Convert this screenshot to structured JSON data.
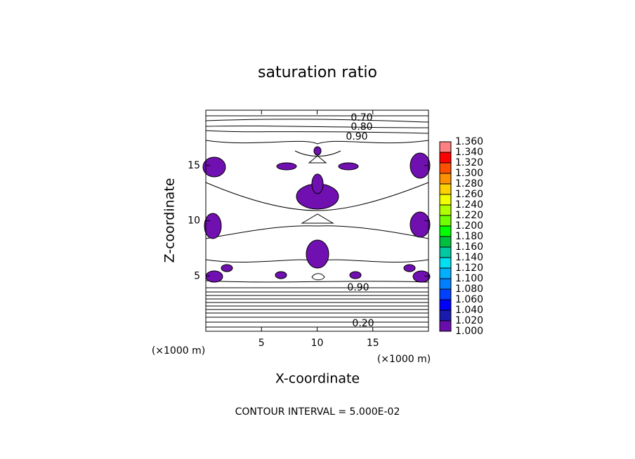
{
  "chart_data": {
    "type": "contour",
    "title": "saturation ratio",
    "xlabel": "X-coordinate",
    "ylabel": "Z-coordinate",
    "x_unit": "(×1000 m)",
    "y_unit": "(×1000 m)",
    "footer": "CONTOUR INTERVAL = 5.000E-02",
    "xlim": [
      0,
      20
    ],
    "ylim": [
      0,
      20
    ],
    "xticks": [
      5,
      10,
      15
    ],
    "yticks": [
      5,
      10,
      15
    ],
    "fill_color": "#7010b0",
    "contour_labels": [
      {
        "value": 0.7,
        "label": "0.70"
      },
      {
        "value": 0.8,
        "label": "0.80"
      },
      {
        "value": 0.9,
        "label": "0.90"
      },
      {
        "value": 0.9,
        "label": "0.90"
      },
      {
        "value": 0.2,
        "label": "0.20"
      }
    ],
    "colorbar": {
      "ticks": [
        {
          "value": 1.0,
          "label": "1.000"
        },
        {
          "value": 1.02,
          "label": "1.020"
        },
        {
          "value": 1.04,
          "label": "1.040"
        },
        {
          "value": 1.06,
          "label": "1.060"
        },
        {
          "value": 1.08,
          "label": "1.080"
        },
        {
          "value": 1.1,
          "label": "1.100"
        },
        {
          "value": 1.12,
          "label": "1.120"
        },
        {
          "value": 1.14,
          "label": "1.140"
        },
        {
          "value": 1.16,
          "label": "1.160"
        },
        {
          "value": 1.18,
          "label": "1.180"
        },
        {
          "value": 1.2,
          "label": "1.200"
        },
        {
          "value": 1.22,
          "label": "1.220"
        },
        {
          "value": 1.24,
          "label": "1.240"
        },
        {
          "value": 1.26,
          "label": "1.260"
        },
        {
          "value": 1.28,
          "label": "1.280"
        },
        {
          "value": 1.3,
          "label": "1.300"
        },
        {
          "value": 1.32,
          "label": "1.320"
        },
        {
          "value": 1.34,
          "label": "1.340"
        },
        {
          "value": 1.36,
          "label": "1.360"
        }
      ],
      "colors": [
        "#6a0dad",
        "#1a1ab0",
        "#0000ff",
        "#0040ff",
        "#0080ff",
        "#00b0ff",
        "#00e0f0",
        "#00c8a0",
        "#00c040",
        "#00ff00",
        "#70ff00",
        "#b0ff00",
        "#f0ff00",
        "#ffd000",
        "#ff9000",
        "#ff5000",
        "#ff0000",
        "#ff8080"
      ]
    }
  }
}
